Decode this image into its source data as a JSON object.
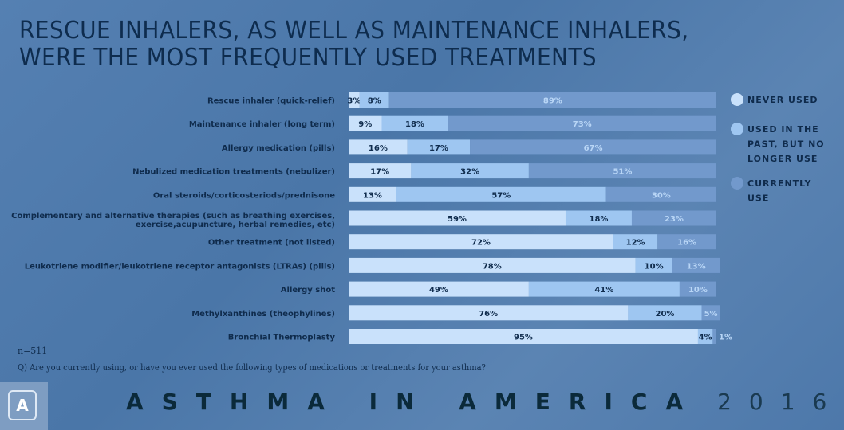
{
  "title_line1": "RESCUE INHALERS, AS WELL AS MAINTENANCE INHALERS,",
  "title_line2": "WERE THE MOST FREQUENTLY USED TREATMENTS",
  "sample_size": "n=511",
  "question": "Q) Are you currently using, or have you ever used the following types of medications or treatments for your asthma?",
  "footer": {
    "brand": "ASTHMA IN AMERICA",
    "year": "2016",
    "logo_letter": "A"
  },
  "chart_data": {
    "type": "bar",
    "orientation": "horizontal",
    "stacked": true,
    "xlim": [
      0,
      100
    ],
    "legend_position": "right",
    "categories": [
      [
        "Rescue inhaler (quick-relief)"
      ],
      [
        "Maintenance inhaler (long term)"
      ],
      [
        "Allergy medication (pills)"
      ],
      [
        "Nebulized medication treatments (nebulizer)"
      ],
      [
        "Oral steroids/corticosteriods/prednisone"
      ],
      [
        "Complementary and alternative therapies (such as breathing exercises,",
        "exercise,acupuncture, herbal remedies, etc)"
      ],
      [
        "Other treatment (not listed)"
      ],
      [
        "Leukotriene modifier/leukotriene receptor antagonists (LTRAs) (pills)"
      ],
      [
        "Allergy shot"
      ],
      [
        "Methylxanthines (theophylines)"
      ],
      [
        "Bronchial Thermoplasty"
      ]
    ],
    "series": [
      {
        "name": "NEVER USED",
        "legend_lines": [
          "NEVER USED"
        ],
        "color": "#c9e1fb",
        "text_color": "#0f2b4c",
        "values": [
          3,
          9,
          16,
          17,
          13,
          59,
          72,
          78,
          49,
          76,
          95
        ]
      },
      {
        "name": "USED IN THE PAST, BUT NO LONGER USE",
        "legend_lines": [
          "USED IN THE",
          "PAST, BUT NO",
          "LONGER USE"
        ],
        "color": "#9ec6f1",
        "text_color": "#0f2b4c",
        "values": [
          8,
          18,
          17,
          32,
          57,
          18,
          12,
          10,
          41,
          20,
          4
        ]
      },
      {
        "name": "CURRENTLY USE",
        "legend_lines": [
          "CURRENTLY",
          "USE"
        ],
        "color": "#7299cc",
        "text_color": "#b9d6f6",
        "values": [
          89,
          73,
          67,
          51,
          30,
          23,
          16,
          13,
          10,
          5,
          1
        ]
      }
    ]
  }
}
